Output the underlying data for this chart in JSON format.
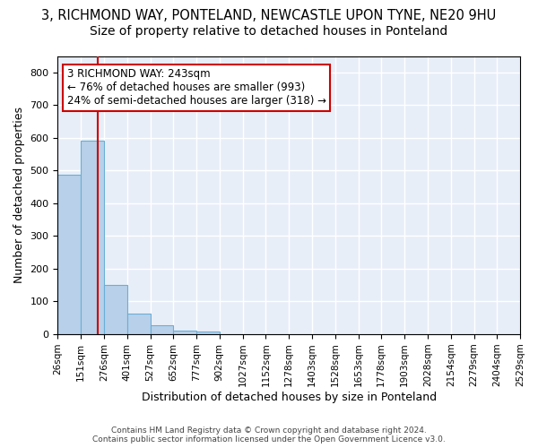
{
  "title1": "3, RICHMOND WAY, PONTELAND, NEWCASTLE UPON TYNE, NE20 9HU",
  "title2": "Size of property relative to detached houses in Ponteland",
  "xlabel": "Distribution of detached houses by size in Ponteland",
  "ylabel": "Number of detached properties",
  "bin_edges": [
    26,
    151,
    276,
    401,
    527,
    652,
    777,
    902,
    1027,
    1152,
    1278,
    1403,
    1528,
    1653,
    1778,
    1903,
    2028,
    2154,
    2279,
    2404,
    2529
  ],
  "bar_heights": [
    487,
    590,
    150,
    63,
    28,
    10,
    7,
    0,
    0,
    0,
    0,
    0,
    0,
    0,
    0,
    0,
    0,
    0,
    0,
    0
  ],
  "bar_color": "#b8d0ea",
  "bar_edge_color": "#6baed6",
  "bg_color": "#e8eef8",
  "grid_color": "#ffffff",
  "fig_bg_color": "#ffffff",
  "vline_x": 243,
  "vline_color": "#cc0000",
  "annotation_text": "3 RICHMOND WAY: 243sqm\n← 76% of detached houses are smaller (993)\n24% of semi-detached houses are larger (318) →",
  "annotation_box_color": "#ffffff",
  "annotation_border_color": "#cc0000",
  "ylim": [
    0,
    850
  ],
  "yticks": [
    0,
    100,
    200,
    300,
    400,
    500,
    600,
    700,
    800
  ],
  "footer": "Contains HM Land Registry data © Crown copyright and database right 2024.\nContains public sector information licensed under the Open Government Licence v3.0.",
  "title1_fontsize": 10.5,
  "title2_fontsize": 10
}
